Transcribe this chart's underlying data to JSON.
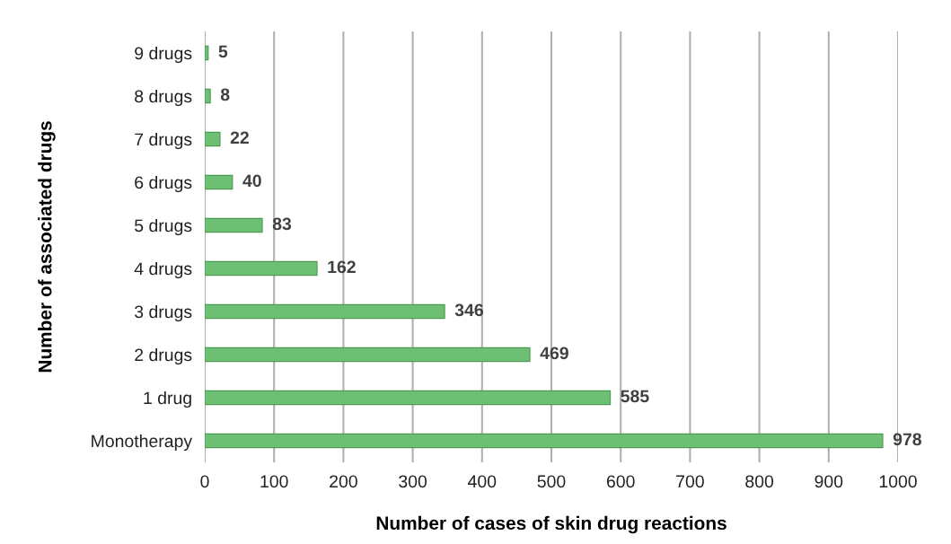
{
  "chart_data": {
    "type": "bar",
    "orientation": "horizontal",
    "xlabel": "Number of cases of skin drug reactions",
    "ylabel": "Number of associated drugs",
    "categories": [
      "9 drugs",
      "8 drugs",
      "7 drugs",
      "6 drugs",
      "5 drugs",
      "4 drugs",
      "3 drugs",
      "2 drugs",
      "1 drug",
      "Monotherapy"
    ],
    "values": [
      5,
      8,
      22,
      40,
      83,
      162,
      346,
      469,
      585,
      978
    ],
    "color": "#6dbf74",
    "xlim": [
      0,
      1000
    ],
    "xticks": [
      0,
      100,
      200,
      300,
      400,
      500,
      600,
      700,
      800,
      900,
      1000
    ],
    "grid": "x",
    "data_labels": true
  }
}
